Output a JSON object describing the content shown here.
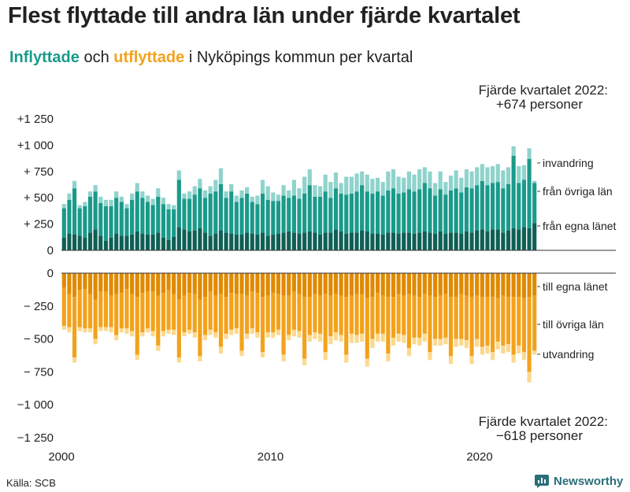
{
  "title": "Flest flyttade till andra län under fjärde kvartalet",
  "subtitle": {
    "in_word": "Inflyttade",
    "and_word": " och ",
    "out_word": "utflyttade",
    "rest": " i Nyköpings kommun per kvartal"
  },
  "source": "Källa: SCB",
  "brand": "Newsworthy",
  "colors": {
    "in_local": "#0f5f55",
    "in_region": "#1a9a8a",
    "in_abroad": "#8fd3cc",
    "out_local": "#e08a00",
    "out_region": "#f3a21c",
    "out_abroad": "#fbd98f",
    "brand": "#2a6f7a"
  },
  "chart_data": {
    "type": "bar",
    "stacked": true,
    "x_start_year": 2000,
    "quarters_per_year": 4,
    "xticks": [
      "2000",
      "2010",
      "2020"
    ],
    "yticks_top": [
      "+1 250",
      "+1 000",
      "+  750",
      "+  500",
      "+  250",
      "0"
    ],
    "yticks_bottom": [
      "0",
      "−  250",
      "−  500",
      "−  750",
      "−1 000",
      "−1 250"
    ],
    "ylim": [
      -1250,
      1250
    ],
    "grid": false,
    "series": [
      {
        "name": "från egna länet",
        "side": "in",
        "values": [
          120,
          160,
          150,
          140,
          120,
          170,
          200,
          140,
          90,
          120,
          160,
          140,
          140,
          150,
          180,
          160,
          150,
          150,
          170,
          120,
          100,
          130,
          220,
          200,
          180,
          190,
          210,
          170,
          140,
          160,
          190,
          170,
          160,
          150,
          150,
          170,
          160,
          150,
          170,
          140,
          150,
          160,
          170,
          180,
          170,
          160,
          170,
          180,
          170,
          150,
          170,
          170,
          200,
          180,
          160,
          170,
          170,
          190,
          180,
          160,
          160,
          150,
          170,
          170,
          160,
          170,
          170,
          160,
          170,
          180,
          170,
          160,
          180,
          160,
          170,
          170,
          160,
          180,
          170,
          190,
          200,
          180,
          200,
          200,
          170,
          190,
          210,
          200,
          220,
          210,
          260
        ]
      },
      {
        "name": "från övriga län",
        "side": "in",
        "values": [
          280,
          320,
          440,
          260,
          300,
          340,
          360,
          310,
          330,
          300,
          340,
          320,
          260,
          330,
          380,
          340,
          310,
          280,
          340,
          320,
          290,
          260,
          450,
          290,
          310,
          340,
          380,
          330,
          400,
          400,
          440,
          330,
          400,
          310,
          350,
          370,
          300,
          290,
          370,
          340,
          320,
          310,
          350,
          320,
          350,
          330,
          370,
          440,
          340,
          360,
          390,
          330,
          390,
          360,
          370,
          370,
          390,
          430,
          380,
          380,
          400,
          370,
          400,
          420,
          380,
          380,
          410,
          400,
          410,
          460,
          420,
          360,
          400,
          370,
          400,
          420,
          390,
          420,
          420,
          430,
          460,
          440,
          440,
          450,
          420,
          440,
          690,
          440,
          450,
          660,
          380
        ]
      },
      {
        "name": "invandring",
        "side": "in",
        "values": [
          40,
          60,
          70,
          30,
          40,
          50,
          60,
          60,
          60,
          60,
          60,
          50,
          40,
          60,
          80,
          60,
          60,
          60,
          80,
          60,
          50,
          40,
          90,
          50,
          70,
          80,
          90,
          70,
          70,
          110,
          150,
          60,
          70,
          60,
          70,
          60,
          50,
          80,
          130,
          130,
          80,
          60,
          100,
          70,
          150,
          100,
          160,
          150,
          110,
          100,
          160,
          150,
          150,
          100,
          170,
          160,
          170,
          130,
          160,
          140,
          130,
          130,
          180,
          180,
          160,
          140,
          170,
          160,
          190,
          150,
          160,
          120,
          170,
          120,
          140,
          170,
          140,
          170,
          160,
          170,
          160,
          170,
          160,
          170,
          170,
          160,
          90,
          160,
          140,
          100,
          20
        ]
      },
      {
        "name": "till egna länet",
        "side": "out",
        "values": [
          -110,
          -160,
          -180,
          -130,
          -120,
          -160,
          -200,
          -140,
          -140,
          -170,
          -160,
          -150,
          -120,
          -160,
          -180,
          -150,
          -140,
          -140,
          -170,
          -150,
          -130,
          -160,
          -200,
          -170,
          -150,
          -160,
          -200,
          -180,
          -140,
          -170,
          -160,
          -180,
          -150,
          -160,
          -160,
          -170,
          -140,
          -150,
          -180,
          -170,
          -150,
          -160,
          -170,
          -170,
          -140,
          -160,
          -180,
          -180,
          -160,
          -170,
          -160,
          -170,
          -160,
          -170,
          -180,
          -170,
          -160,
          -160,
          -190,
          -180,
          -150,
          -170,
          -180,
          -180,
          -160,
          -170,
          -160,
          -170,
          -180,
          -160,
          -170,
          -180,
          -170,
          -160,
          -180,
          -180,
          -160,
          -170,
          -180,
          -170,
          -180,
          -180,
          -180,
          -190,
          -170,
          -180,
          -180,
          -180,
          -190,
          -180,
          -170
        ]
      },
      {
        "name": "till övriga län",
        "side": "out",
        "values": [
          -290,
          -250,
          -460,
          -280,
          -300,
          -260,
          -300,
          -270,
          -270,
          -240,
          -310,
          -270,
          -300,
          -280,
          -440,
          -300,
          -280,
          -300,
          -380,
          -290,
          -300,
          -270,
          -440,
          -280,
          -280,
          -290,
          -430,
          -290,
          -290,
          -280,
          -400,
          -280,
          -280,
          -260,
          -430,
          -290,
          -280,
          -300,
          -420,
          -280,
          -300,
          -270,
          -450,
          -300,
          -290,
          -280,
          -470,
          -290,
          -290,
          -290,
          -440,
          -310,
          -290,
          -300,
          -440,
          -290,
          -310,
          -300,
          -460,
          -320,
          -310,
          -290,
          -430,
          -310,
          -300,
          -300,
          -410,
          -320,
          -310,
          -300,
          -430,
          -320,
          -330,
          -330,
          -450,
          -320,
          -340,
          -340,
          -450,
          -330,
          -380,
          -370,
          -420,
          -330,
          -380,
          -360,
          -440,
          -370,
          -410,
          -570,
          -420
        ]
      },
      {
        "name": "utvandring",
        "side": "out",
        "values": [
          -30,
          -40,
          -40,
          -30,
          -30,
          -30,
          -40,
          -30,
          -30,
          -40,
          -40,
          -30,
          -40,
          -40,
          -40,
          -30,
          -30,
          -40,
          -40,
          -40,
          -30,
          -40,
          -40,
          -30,
          -30,
          -40,
          -40,
          -40,
          -40,
          -40,
          -50,
          -40,
          -40,
          -40,
          -40,
          -40,
          -40,
          -40,
          -40,
          -40,
          -40,
          -40,
          -50,
          -40,
          -50,
          -50,
          -50,
          -50,
          -50,
          -60,
          -60,
          -60,
          -60,
          -50,
          -60,
          -70,
          -60,
          -60,
          -60,
          -70,
          -60,
          -60,
          -60,
          -60,
          -60,
          -60,
          -60,
          -50,
          -60,
          -60,
          -60,
          -50,
          -50,
          -50,
          -60,
          -60,
          -50,
          -60,
          -60,
          -60,
          -60,
          -60,
          -60,
          -60,
          -60,
          -60,
          -60,
          -60,
          -60,
          -80,
          -28
        ]
      }
    ],
    "annotations": [
      {
        "text": "Fjärde kvartalet 2022:",
        "text2": "+674 personer",
        "side": "top-right"
      },
      {
        "text": "Fjärde kvartalet 2022:",
        "text2": "−618 personer",
        "side": "bottom-right"
      }
    ],
    "labels": {
      "invandring": "invandring",
      "fran_ovriga": "från övriga län",
      "fran_egna": "från egna länet",
      "till_egna": "till egna länet",
      "till_ovriga": "till övriga län",
      "utvandring": "utvandring"
    }
  }
}
